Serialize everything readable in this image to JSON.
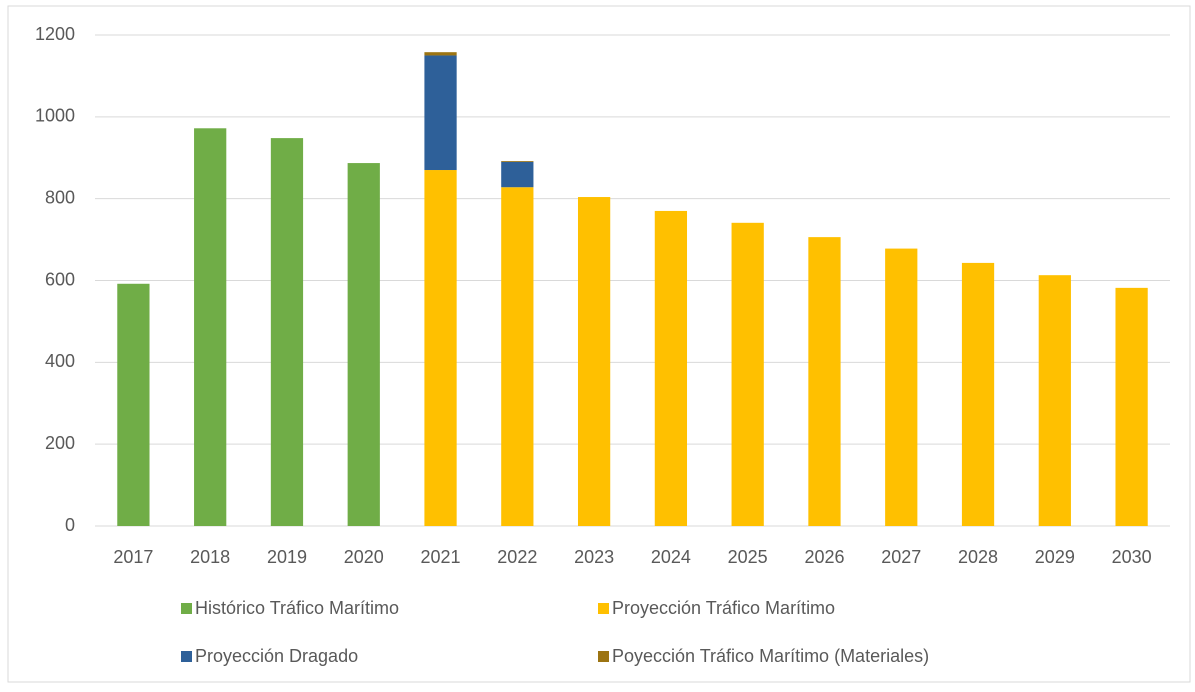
{
  "chart_data": {
    "type": "stacked_bar",
    "categories": [
      "2017",
      "2018",
      "2019",
      "2020",
      "2021",
      "2022",
      "2023",
      "2024",
      "2025",
      "2026",
      "2027",
      "2028",
      "2029",
      "2030"
    ],
    "series": [
      {
        "name": "Histórico Tráfico Marítimo",
        "color": "#70ad47",
        "values": [
          592,
          972,
          948,
          887,
          null,
          null,
          null,
          null,
          null,
          null,
          null,
          null,
          null,
          null
        ]
      },
      {
        "name": "Proyección Tráfico Marítimo",
        "color": "#ffc000",
        "values": [
          null,
          null,
          null,
          null,
          870,
          828,
          804,
          770,
          741,
          706,
          678,
          643,
          613,
          582
        ]
      },
      {
        "name": "Proyección Dragado",
        "color": "#2e6099",
        "values": [
          null,
          null,
          null,
          null,
          280,
          62,
          null,
          null,
          null,
          null,
          null,
          null,
          null,
          null
        ]
      },
      {
        "name": "Poyección Tráfico Marítimo (Materiales)",
        "color": "#9c7412",
        "values": [
          null,
          null,
          null,
          null,
          8,
          2,
          null,
          null,
          null,
          null,
          null,
          null,
          null,
          null
        ]
      }
    ],
    "ylim": [
      0,
      1200
    ],
    "yticks": [
      0,
      200,
      400,
      600,
      800,
      1000,
      1200
    ],
    "grid": true
  }
}
